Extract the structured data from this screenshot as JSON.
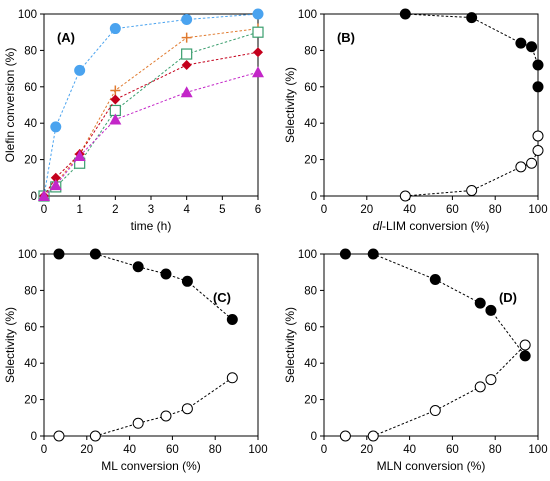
{
  "colors": {
    "blue": "#4aa3ef",
    "orange": "#e07a2f",
    "green": "#3a9e6e",
    "red": "#c4001c",
    "magenta": "#c326c8",
    "black": "#000000"
  },
  "chart_data": [
    {
      "panel": "(A)",
      "type": "line",
      "xlabel": "time (h)",
      "ylabel": "Olefin conversion (%)",
      "xlim": [
        0,
        6
      ],
      "ylim": [
        0,
        100
      ],
      "xticks": [
        0,
        1,
        2,
        3,
        4,
        5,
        6
      ],
      "yticks": [
        0,
        20,
        40,
        60,
        80,
        100
      ],
      "x": [
        0,
        0.33,
        1,
        2,
        4,
        6
      ],
      "series": [
        {
          "marker": "filled-circle",
          "color": "blue",
          "values": [
            0,
            38,
            69,
            92,
            97,
            100
          ]
        },
        {
          "marker": "plus",
          "color": "orange",
          "values": [
            0,
            7,
            23,
            58,
            87,
            92
          ]
        },
        {
          "marker": "open-square",
          "color": "green",
          "values": [
            0,
            5,
            18,
            47,
            78,
            90
          ]
        },
        {
          "marker": "filled-diamond",
          "color": "red",
          "values": [
            0,
            10,
            23,
            53,
            72,
            79
          ]
        },
        {
          "marker": "filled-triangle",
          "color": "magenta",
          "values": [
            0,
            6,
            22,
            42,
            57,
            68
          ]
        }
      ]
    },
    {
      "panel": "(B)",
      "type": "line",
      "xlabel_italic": "dl",
      "xlabel": "-LIM conversion (%)",
      "ylabel": "Selectivity (%)",
      "xlim": [
        0,
        100
      ],
      "ylim": [
        0,
        100
      ],
      "xticks": [
        0,
        20,
        40,
        60,
        80,
        100
      ],
      "yticks": [
        0,
        20,
        40,
        60,
        80,
        100
      ],
      "series": [
        {
          "marker": "filled-circle",
          "x": [
            38,
            69,
            92,
            97,
            100,
            100
          ],
          "values": [
            100,
            98,
            84,
            82,
            72,
            60
          ]
        },
        {
          "marker": "open-circle",
          "x": [
            38,
            69,
            92,
            97,
            100,
            100
          ],
          "values": [
            0,
            3,
            16,
            18,
            25,
            33
          ]
        }
      ]
    },
    {
      "panel": "(C)",
      "type": "line",
      "xlabel": "ML conversion (%)",
      "ylabel": "Selectivity (%)",
      "xlim": [
        0,
        100
      ],
      "ylim": [
        0,
        100
      ],
      "xticks": [
        0,
        20,
        40,
        60,
        80,
        100
      ],
      "yticks": [
        0,
        20,
        40,
        60,
        80,
        100
      ],
      "series": [
        {
          "marker": "filled-circle",
          "x": [
            7,
            24,
            44,
            57,
            67,
            88
          ],
          "values": [
            100,
            100,
            93,
            89,
            85,
            64
          ]
        },
        {
          "marker": "open-circle",
          "x": [
            7,
            24,
            44,
            57,
            67,
            88
          ],
          "values": [
            0,
            0,
            7,
            11,
            15,
            32
          ]
        }
      ]
    },
    {
      "panel": "(D)",
      "type": "line",
      "xlabel": "MLN conversion (%)",
      "ylabel": "Selectivity (%)",
      "xlim": [
        0,
        100
      ],
      "ylim": [
        0,
        100
      ],
      "xticks": [
        0,
        20,
        40,
        60,
        80,
        100
      ],
      "yticks": [
        0,
        20,
        40,
        60,
        80,
        100
      ],
      "series": [
        {
          "marker": "filled-circle",
          "x": [
            10,
            23,
            52,
            73,
            78,
            94
          ],
          "values": [
            100,
            100,
            86,
            73,
            69,
            44
          ]
        },
        {
          "marker": "open-circle",
          "x": [
            10,
            23,
            52,
            73,
            78,
            94
          ],
          "values": [
            0,
            0,
            14,
            27,
            31,
            50
          ]
        }
      ]
    }
  ]
}
